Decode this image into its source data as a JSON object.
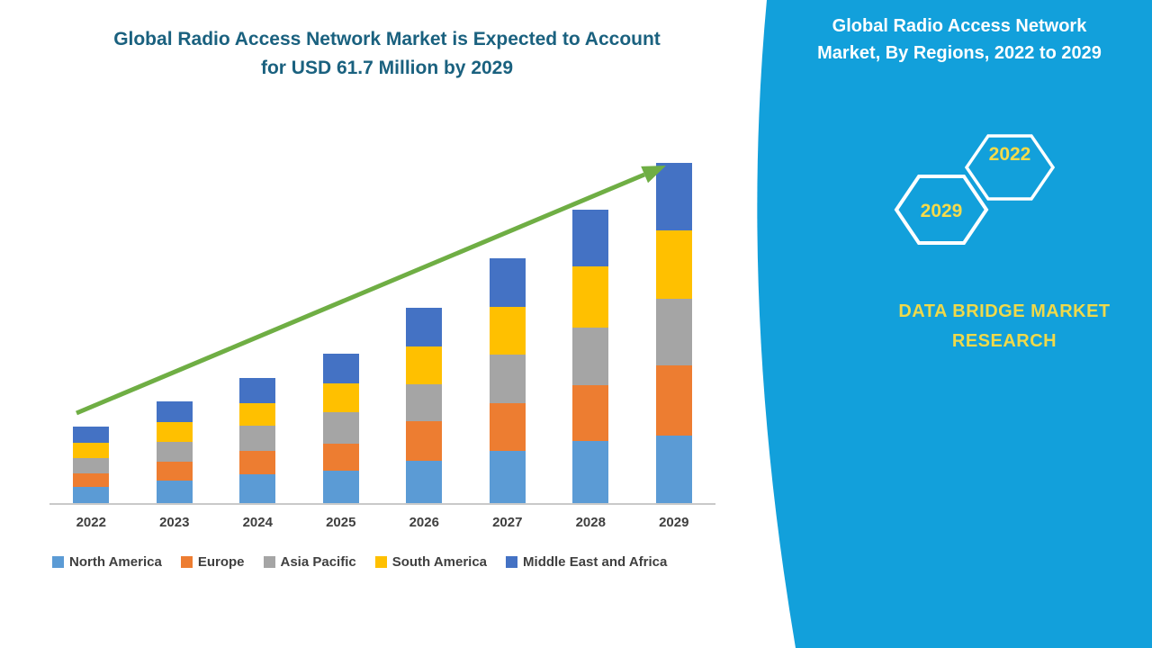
{
  "title": {
    "line1": "Global Radio Access Network Market is Expected to Account",
    "line2": "for USD 61.7 Million by 2029"
  },
  "panel": {
    "title_line1": "Global Radio Access Network",
    "title_line2": "Market, By Regions, 2022 to 2029",
    "badge_2022": "2022",
    "badge_2029": "2029",
    "brand_line1": "DATA BRIDGE MARKET",
    "brand_line2": "RESEARCH"
  },
  "colors": {
    "panel_blue": "#12A0DB",
    "title_teal": "#1A617F",
    "accent_yellow": "#F5DB4B",
    "arrow_green": "#6FAE44",
    "axis_line": "#C9C9C9",
    "label_gray": "#3F3F3F"
  },
  "chart_data": {
    "type": "bar",
    "stacked": true,
    "title": "Global Radio Access Network Market is Expected to Account for USD 61.7 Million by 2029",
    "unit": "USD Million",
    "categories": [
      "2022",
      "2023",
      "2024",
      "2025",
      "2026",
      "2027",
      "2028",
      "2029"
    ],
    "series": [
      {
        "name": "North America",
        "color": "#5B9BD5",
        "values": [
          2.9,
          4.1,
          5.2,
          5.8,
          7.6,
          9.4,
          11.2,
          12.3
        ]
      },
      {
        "name": "Europe",
        "color": "#ED7D31",
        "values": [
          2.4,
          3.4,
          4.2,
          4.9,
          7.1,
          8.6,
          10.1,
          12.7
        ]
      },
      {
        "name": "Asia Pacific",
        "color": "#A5A5A5",
        "values": [
          2.8,
          3.6,
          4.5,
          5.7,
          6.8,
          8.8,
          10.4,
          12.0
        ]
      },
      {
        "name": "South America",
        "color": "#FFC000",
        "values": [
          2.8,
          3.6,
          4.1,
          5.2,
          6.8,
          8.6,
          11.0,
          12.5
        ]
      },
      {
        "name": "Middle East and Africa",
        "color": "#4472C4",
        "values": [
          2.9,
          3.6,
          4.5,
          5.4,
          7.0,
          8.8,
          10.2,
          12.2
        ]
      }
    ],
    "totals": [
      13.8,
      18.3,
      22.5,
      27.0,
      35.3,
      44.2,
      52.9,
      61.7
    ],
    "ylim": [
      0,
      65
    ],
    "y_axis_visible": false,
    "gridlines": false,
    "legend_position": "bottom",
    "annotations": [
      {
        "type": "trend-arrow",
        "direction": "up",
        "color": "#6FAE44"
      }
    ]
  }
}
